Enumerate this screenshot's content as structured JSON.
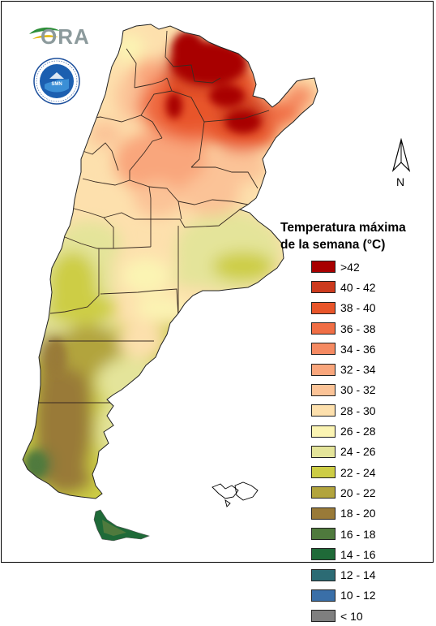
{
  "legend": {
    "title_line1": "Temperatura máxima",
    "title_line2": "de la semana (°C)",
    "classes": [
      {
        "label": ">42",
        "color": "#a80000"
      },
      {
        "label": "40 - 42",
        "color": "#cc3a1e"
      },
      {
        "label": "38 - 40",
        "color": "#e8552a"
      },
      {
        "label": "36 - 38",
        "color": "#f06e45"
      },
      {
        "label": "34 - 36",
        "color": "#f58a62"
      },
      {
        "label": "32 - 34",
        "color": "#f9a67c"
      },
      {
        "label": "30 - 32",
        "color": "#fbc397"
      },
      {
        "label": "28 - 30",
        "color": "#fde0ad"
      },
      {
        "label": "26 - 28",
        "color": "#fbf4b3"
      },
      {
        "label": "24 - 26",
        "color": "#e4e49a"
      },
      {
        "label": "22 - 24",
        "color": "#cdcd45"
      },
      {
        "label": "20 - 22",
        "color": "#b2a43d"
      },
      {
        "label": "18 - 20",
        "color": "#997a38"
      },
      {
        "label": "16 - 18",
        "color": "#4f7a3d"
      },
      {
        "label": "14 - 16",
        "color": "#1f6a38"
      },
      {
        "label": "12 - 14",
        "color": "#2c6b74"
      },
      {
        "label": "10 - 12",
        "color": "#3a6fa8"
      },
      {
        "label": "< 10",
        "color": "#7f7f7f"
      }
    ]
  },
  "logos": {
    "ora_word": "ORA",
    "seal_text": "SERVICIO METEOROLOGICO NACIONAL ARGENTINA"
  },
  "north_arrow": {
    "label": "N"
  }
}
